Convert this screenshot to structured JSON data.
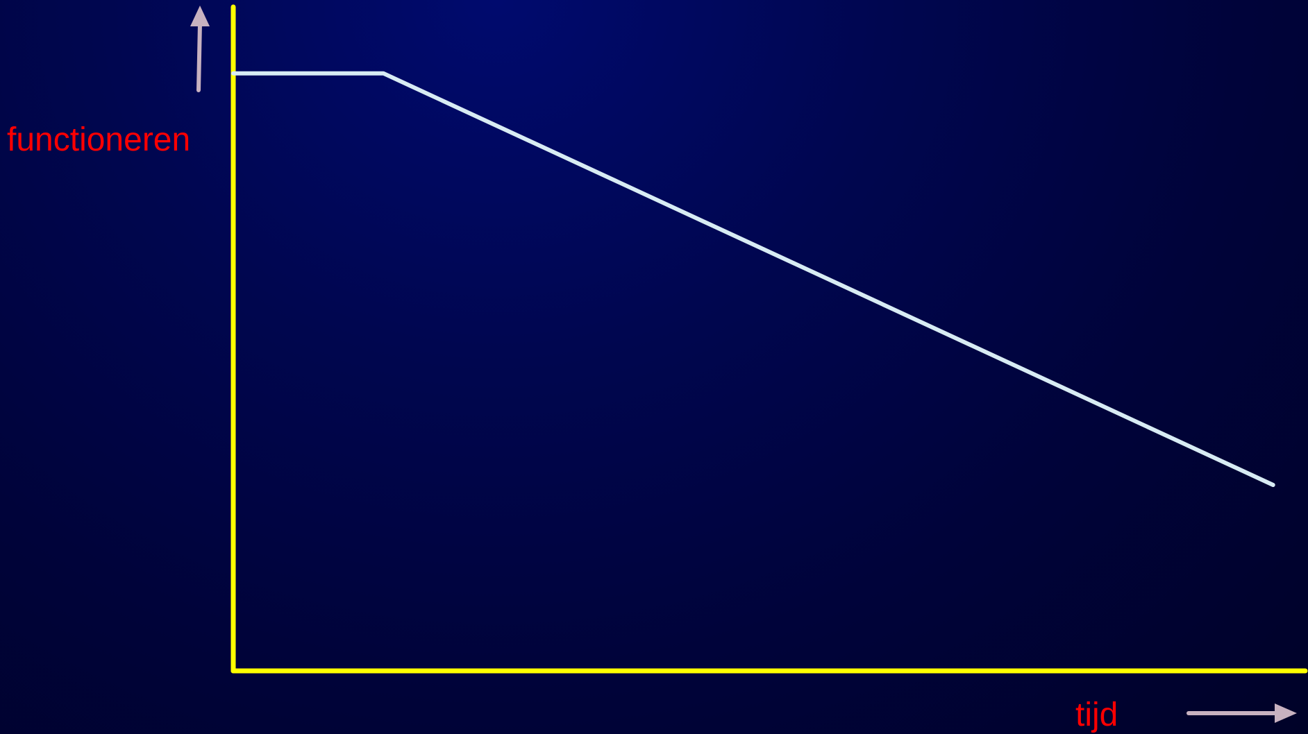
{
  "chart_data": {
    "type": "line",
    "title": "",
    "xlabel": "tijd",
    "ylabel": "functioneren",
    "x": [
      0,
      0.14,
      0.97
    ],
    "series": [
      {
        "values": [
          0.9,
          0.9,
          0.28
        ]
      }
    ],
    "xlim": [
      0,
      1
    ],
    "ylim": [
      0,
      1
    ],
    "grid": false,
    "legend": "none",
    "ticks": "none"
  },
  "colors": {
    "axes": "#ffff00",
    "line": "#d8ecf4",
    "labels": "#ff0000",
    "arrows": "#c8b2c0",
    "background": "#000452"
  }
}
